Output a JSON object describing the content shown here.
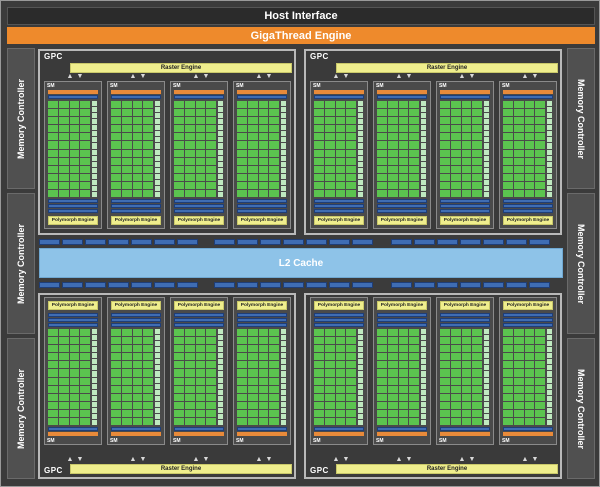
{
  "host_interface": "Host Interface",
  "gigathread_engine": "GigaThread Engine",
  "l2_cache": "L2 Cache",
  "memory_controller_label": "Memory Controller",
  "gpc_label": "GPC",
  "raster_engine_label": "Raster Engine",
  "sm_label": "SM",
  "polymorph_engine_label": "Polymorph Engine",
  "colors": {
    "background": "#3b3b3b",
    "gigathread": "#ee8a2c",
    "l2": "#8ec3e8",
    "raster": "#efee8d",
    "cuda_core": "#5bc44f",
    "register_file": "#3f6db3",
    "instruction_cache": "#e88a3a"
  }
}
